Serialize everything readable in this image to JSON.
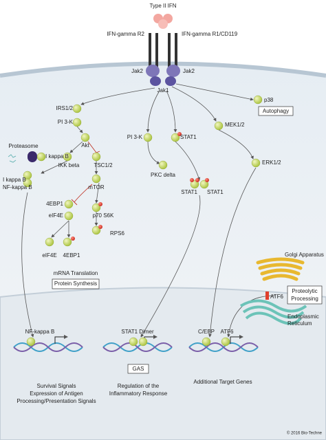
{
  "ligand": "Type II IFN",
  "receptors": [
    "IFN-gamma R2",
    "IFN-gamma R1/CD119"
  ],
  "kinases": [
    "Jak2",
    "Jak2",
    "Jak1"
  ],
  "nodes": [
    "IRS1/2",
    "PI 3-K",
    "Akt",
    "IKK beta",
    "TSC1/2",
    "mTOR",
    "4EBP1",
    "eIF4E",
    "p70 S6K",
    "RPS6",
    "eIF4E",
    "4EBP1",
    "mRNA Translation",
    "Proteasome",
    "I kappa B",
    "I kappa B",
    "NF-kappa B",
    "PI 3-K",
    "STAT1",
    "PKC delta",
    "STAT1",
    "STAT1",
    "p38",
    "MEK1/2",
    "ERK1/2",
    "ATF6"
  ],
  "boxes": [
    "Autophagy",
    "Protein Synthesis",
    "Proteolytic",
    "Processing",
    "GAS"
  ],
  "organelles": [
    "Golgi Apparatus",
    "Endoplasmic",
    "Reticulum"
  ],
  "nucleus": {
    "factors": [
      "NF-kappa B",
      "STAT1 Dimer",
      "C/EBP",
      "ATF6"
    ],
    "outcomes": [
      "Survival Signals",
      "Expression of Antigen",
      "Processing/Presentation Signals",
      "Regulation of the",
      "Inflammatory Response",
      "Additional Target Genes"
    ]
  },
  "copyright": "© 2016 Bio-Techne"
}
